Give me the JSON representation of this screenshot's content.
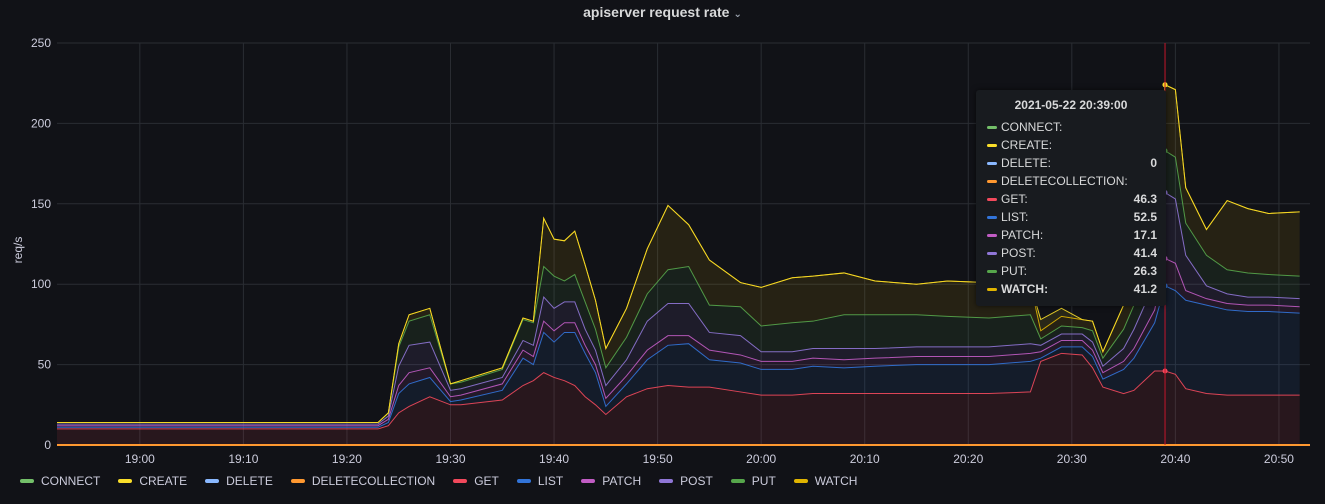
{
  "panel": {
    "title": "apiserver request rate",
    "chevron": "⌄"
  },
  "chart_data": {
    "type": "area",
    "stacked": true,
    "ylabel": "req/s",
    "ylim": [
      0,
      250
    ],
    "yticks": [
      0,
      50,
      100,
      150,
      200,
      250
    ],
    "xlim": [
      "18:52",
      "20:53"
    ],
    "xticks": [
      "19:00",
      "19:10",
      "19:20",
      "19:30",
      "19:40",
      "19:50",
      "20:00",
      "20:10",
      "20:20",
      "20:30",
      "20:40",
      "20:50"
    ],
    "grid": true,
    "legend_position": "bottom-left",
    "series_colors": {
      "CONNECT": "#73bf69",
      "CREATE": "#fade2a",
      "DELETE": "#5794f2",
      "DELETECOLLECTION": "#ff9830",
      "GET": "#f2495c",
      "LIST": "#3274d9",
      "PATCH": "#c15cc4",
      "POST": "#8f76d6",
      "PUT": "#56a64b",
      "WATCH": "#e0b400"
    },
    "legend_colors": [
      "#73bf69",
      "#fade2a",
      "#8ab8ff",
      "#ff9830",
      "#f2495c",
      "#3274d9",
      "#c15cc4",
      "#8f76d6",
      "#56a64b",
      "#e0b400"
    ],
    "x": [
      "18:52",
      "19:23",
      "19:24",
      "19:25",
      "19:26",
      "19:28",
      "19:30",
      "19:31",
      "19:35",
      "19:37",
      "19:38",
      "19:39",
      "19:40",
      "19:41",
      "19:42",
      "19:43",
      "19:44",
      "19:45",
      "19:47",
      "19:49",
      "19:51",
      "19:53",
      "19:55",
      "19:58",
      "20:00",
      "20:03",
      "20:05",
      "20:08",
      "20:11",
      "20:15",
      "20:18",
      "20:22",
      "20:26",
      "20:27",
      "20:29",
      "20:31",
      "20:32",
      "20:33",
      "20:35",
      "20:36",
      "20:38",
      "20:39",
      "20:40",
      "20:41",
      "20:43",
      "20:45",
      "20:47",
      "20:49",
      "20:52"
    ],
    "series": [
      {
        "name": "GET",
        "values": [
          10,
          10,
          12,
          20,
          24,
          30,
          25,
          25,
          28,
          37,
          40,
          45,
          42,
          40,
          37,
          30,
          25,
          19,
          30,
          35,
          37,
          36,
          36,
          33,
          31,
          31,
          32,
          32,
          32,
          32,
          32,
          32,
          33,
          52,
          57,
          56,
          48,
          36,
          32,
          34,
          46,
          46,
          44,
          35,
          32,
          31,
          31,
          31,
          31
        ]
      },
      {
        "name": "LIST",
        "values": [
          1,
          1,
          2,
          12,
          14,
          12,
          2,
          3,
          6,
          17,
          10,
          25,
          22,
          30,
          33,
          27,
          20,
          5,
          8,
          18,
          25,
          27,
          17,
          18,
          16,
          16,
          17,
          16,
          17,
          18,
          18,
          18,
          19,
          2,
          4,
          5,
          7,
          5,
          15,
          20,
          30,
          53,
          52,
          55,
          55,
          53,
          52,
          52,
          51
        ]
      },
      {
        "name": "PATCH",
        "values": [
          1,
          1,
          2,
          5,
          7,
          6,
          3,
          3,
          4,
          5,
          5,
          7,
          7,
          6,
          6,
          5,
          5,
          5,
          5,
          6,
          6,
          5,
          6,
          5,
          5,
          5,
          5,
          5,
          5,
          5,
          5,
          5,
          5,
          4,
          4,
          4,
          4,
          4,
          5,
          6,
          8,
          17,
          17,
          6,
          4,
          4,
          4,
          4,
          4
        ]
      },
      {
        "name": "POST",
        "values": [
          1,
          1,
          2,
          12,
          17,
          16,
          4,
          4,
          4,
          6,
          7,
          15,
          14,
          13,
          13,
          10,
          9,
          8,
          10,
          18,
          20,
          20,
          11,
          12,
          6,
          6,
          6,
          7,
          6,
          6,
          6,
          6,
          6,
          4,
          4,
          4,
          5,
          4,
          8,
          12,
          17,
          41,
          40,
          22,
          8,
          6,
          5,
          5,
          5
        ]
      },
      {
        "name": "PUT",
        "values": [
          1,
          1,
          2,
          12,
          15,
          17,
          4,
          4,
          5,
          13,
          14,
          19,
          20,
          13,
          17,
          17,
          13,
          11,
          14,
          17,
          21,
          23,
          17,
          18,
          16,
          18,
          17,
          21,
          21,
          20,
          19,
          18,
          18,
          4,
          5,
          4,
          7,
          5,
          12,
          15,
          20,
          26,
          26,
          20,
          19,
          15,
          15,
          14,
          14
        ]
      },
      {
        "name": "WATCH",
        "values": [
          0,
          0,
          0,
          2,
          4,
          4,
          0,
          1,
          1,
          1,
          1,
          30,
          23,
          25,
          27,
          23,
          18,
          12,
          18,
          28,
          40,
          26,
          28,
          15,
          24,
          28,
          28,
          26,
          21,
          19,
          22,
          22,
          19,
          5,
          6,
          5,
          6,
          4,
          15,
          20,
          30,
          41,
          42,
          22,
          16,
          43,
          40,
          38,
          40
        ]
      },
      {
        "name": "CREATE",
        "values": [
          0,
          0,
          0,
          0,
          0,
          0,
          0,
          0,
          0,
          0,
          0,
          0,
          0,
          0,
          0,
          0,
          0,
          0,
          0,
          0,
          0,
          0,
          0,
          0,
          0,
          0,
          0,
          0,
          0,
          0,
          0,
          0,
          0,
          7,
          5,
          0,
          0,
          0,
          0,
          0,
          0,
          0,
          0,
          0,
          0,
          0,
          0,
          0,
          0
        ]
      }
    ],
    "tooltip": {
      "title": "2021-05-22 20:39:00",
      "rows": [
        {
          "name": "CONNECT:",
          "value": "",
          "color": "#73bf69"
        },
        {
          "name": "CREATE:",
          "value": "",
          "color": "#fade2a"
        },
        {
          "name": "DELETE:",
          "value": "0",
          "color": "#8ab8ff"
        },
        {
          "name": "DELETECOLLECTION:",
          "value": "",
          "color": "#ff9830"
        },
        {
          "name": "GET:",
          "value": "46.3",
          "color": "#f2495c"
        },
        {
          "name": "LIST:",
          "value": "52.5",
          "color": "#3274d9"
        },
        {
          "name": "PATCH:",
          "value": "17.1",
          "color": "#c15cc4"
        },
        {
          "name": "POST:",
          "value": "41.4",
          "color": "#8f76d6"
        },
        {
          "name": "PUT:",
          "value": "26.3",
          "color": "#56a64b"
        },
        {
          "name": "WATCH:",
          "value": "41.2",
          "color": "#e0b400"
        }
      ]
    },
    "legend": [
      "CONNECT",
      "CREATE",
      "DELETE",
      "DELETECOLLECTION",
      "GET",
      "LIST",
      "PATCH",
      "POST",
      "PUT",
      "WATCH"
    ],
    "cursor_time": "20:39"
  }
}
